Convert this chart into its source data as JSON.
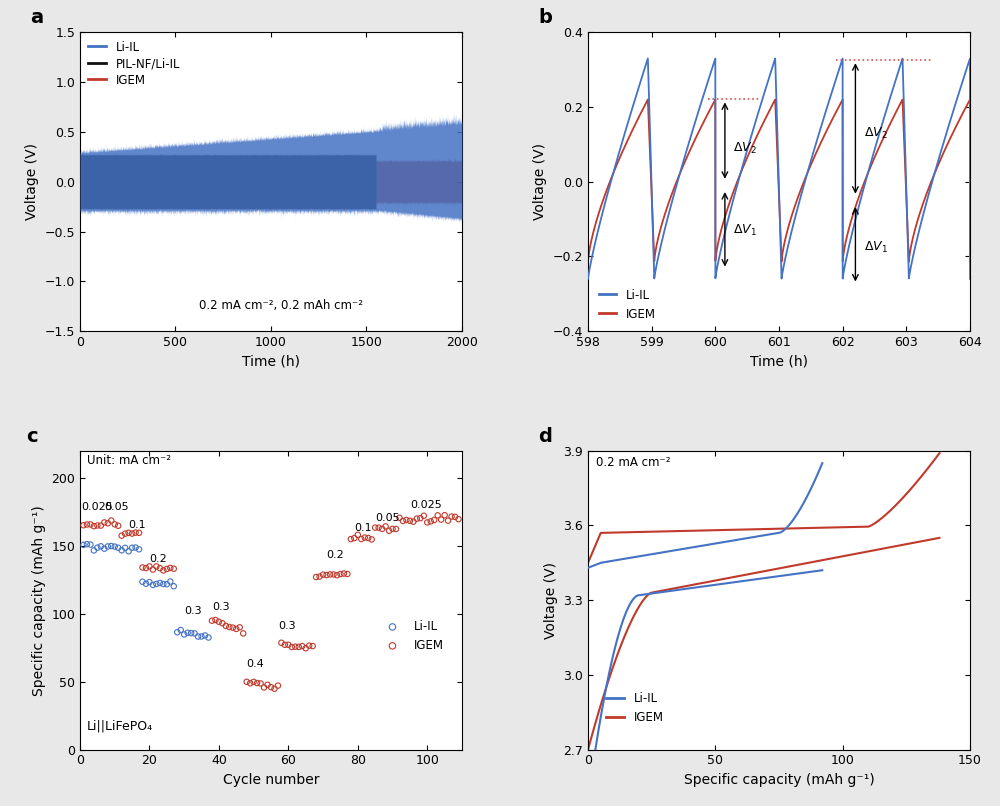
{
  "panel_a": {
    "title_label": "a",
    "xlabel": "Time (h)",
    "ylabel": "Voltage (V)",
    "xlim": [
      0,
      2000
    ],
    "ylim": [
      -1.5,
      1.5
    ],
    "annotation": "0.2 mA cm⁻², 0.2 mAh cm⁻²",
    "legend": [
      "Li-IL",
      "PIL-NF/Li-IL",
      "IGEM"
    ],
    "colors": {
      "Li-IL": "#4472C4",
      "PIL-NF/Li-IL": "#111111",
      "IGEM": "#C0392B"
    },
    "yticks": [
      -1.5,
      -1.0,
      -0.5,
      0.0,
      0.5,
      1.0,
      1.5
    ],
    "xticks": [
      0,
      500,
      1000,
      1500,
      2000
    ]
  },
  "panel_b": {
    "title_label": "b",
    "xlabel": "Time (h)",
    "ylabel": "Voltage (V)",
    "xlim": [
      598,
      604
    ],
    "ylim": [
      -0.4,
      0.4
    ],
    "legend": [
      "Li-IL",
      "IGEM"
    ],
    "colors": {
      "Li-IL": "#4472C4",
      "IGEM": "#C0392B"
    },
    "yticks": [
      -0.4,
      -0.2,
      0.0,
      0.2,
      0.4
    ],
    "xticks": [
      598,
      599,
      600,
      601,
      602,
      603,
      604
    ]
  },
  "panel_c": {
    "title_label": "c",
    "xlabel": "Cycle number",
    "ylabel": "Specific capacity (mAh g⁻¹)",
    "xlim": [
      0,
      110
    ],
    "ylim": [
      0,
      220
    ],
    "legend": [
      "Li-IL",
      "IGEM"
    ],
    "colors": {
      "Li-IL": "#4472C4",
      "IGEM": "#C0392B"
    },
    "annotation_unit": "Unit: mA cm⁻²",
    "annotation_formula": "Li||LiFePO₄",
    "yticks": [
      0,
      50,
      100,
      150,
      200
    ],
    "xticks": [
      0,
      20,
      40,
      60,
      80,
      100
    ]
  },
  "panel_d": {
    "title_label": "d",
    "xlabel": "Specific capacity (mAh g⁻¹)",
    "ylabel": "Voltage (V)",
    "xlim": [
      0,
      150
    ],
    "ylim": [
      2.7,
      3.9
    ],
    "legend": [
      "Li-IL",
      "IGEM"
    ],
    "colors": {
      "Li-IL": "#4472C4",
      "IGEM": "#C0392B"
    },
    "annotation": "0.2 mA cm⁻²",
    "yticks": [
      2.7,
      3.0,
      3.3,
      3.6,
      3.9
    ],
    "xticks": [
      0,
      50,
      100,
      150
    ]
  },
  "figure": {
    "background": "#e8e8e8"
  }
}
